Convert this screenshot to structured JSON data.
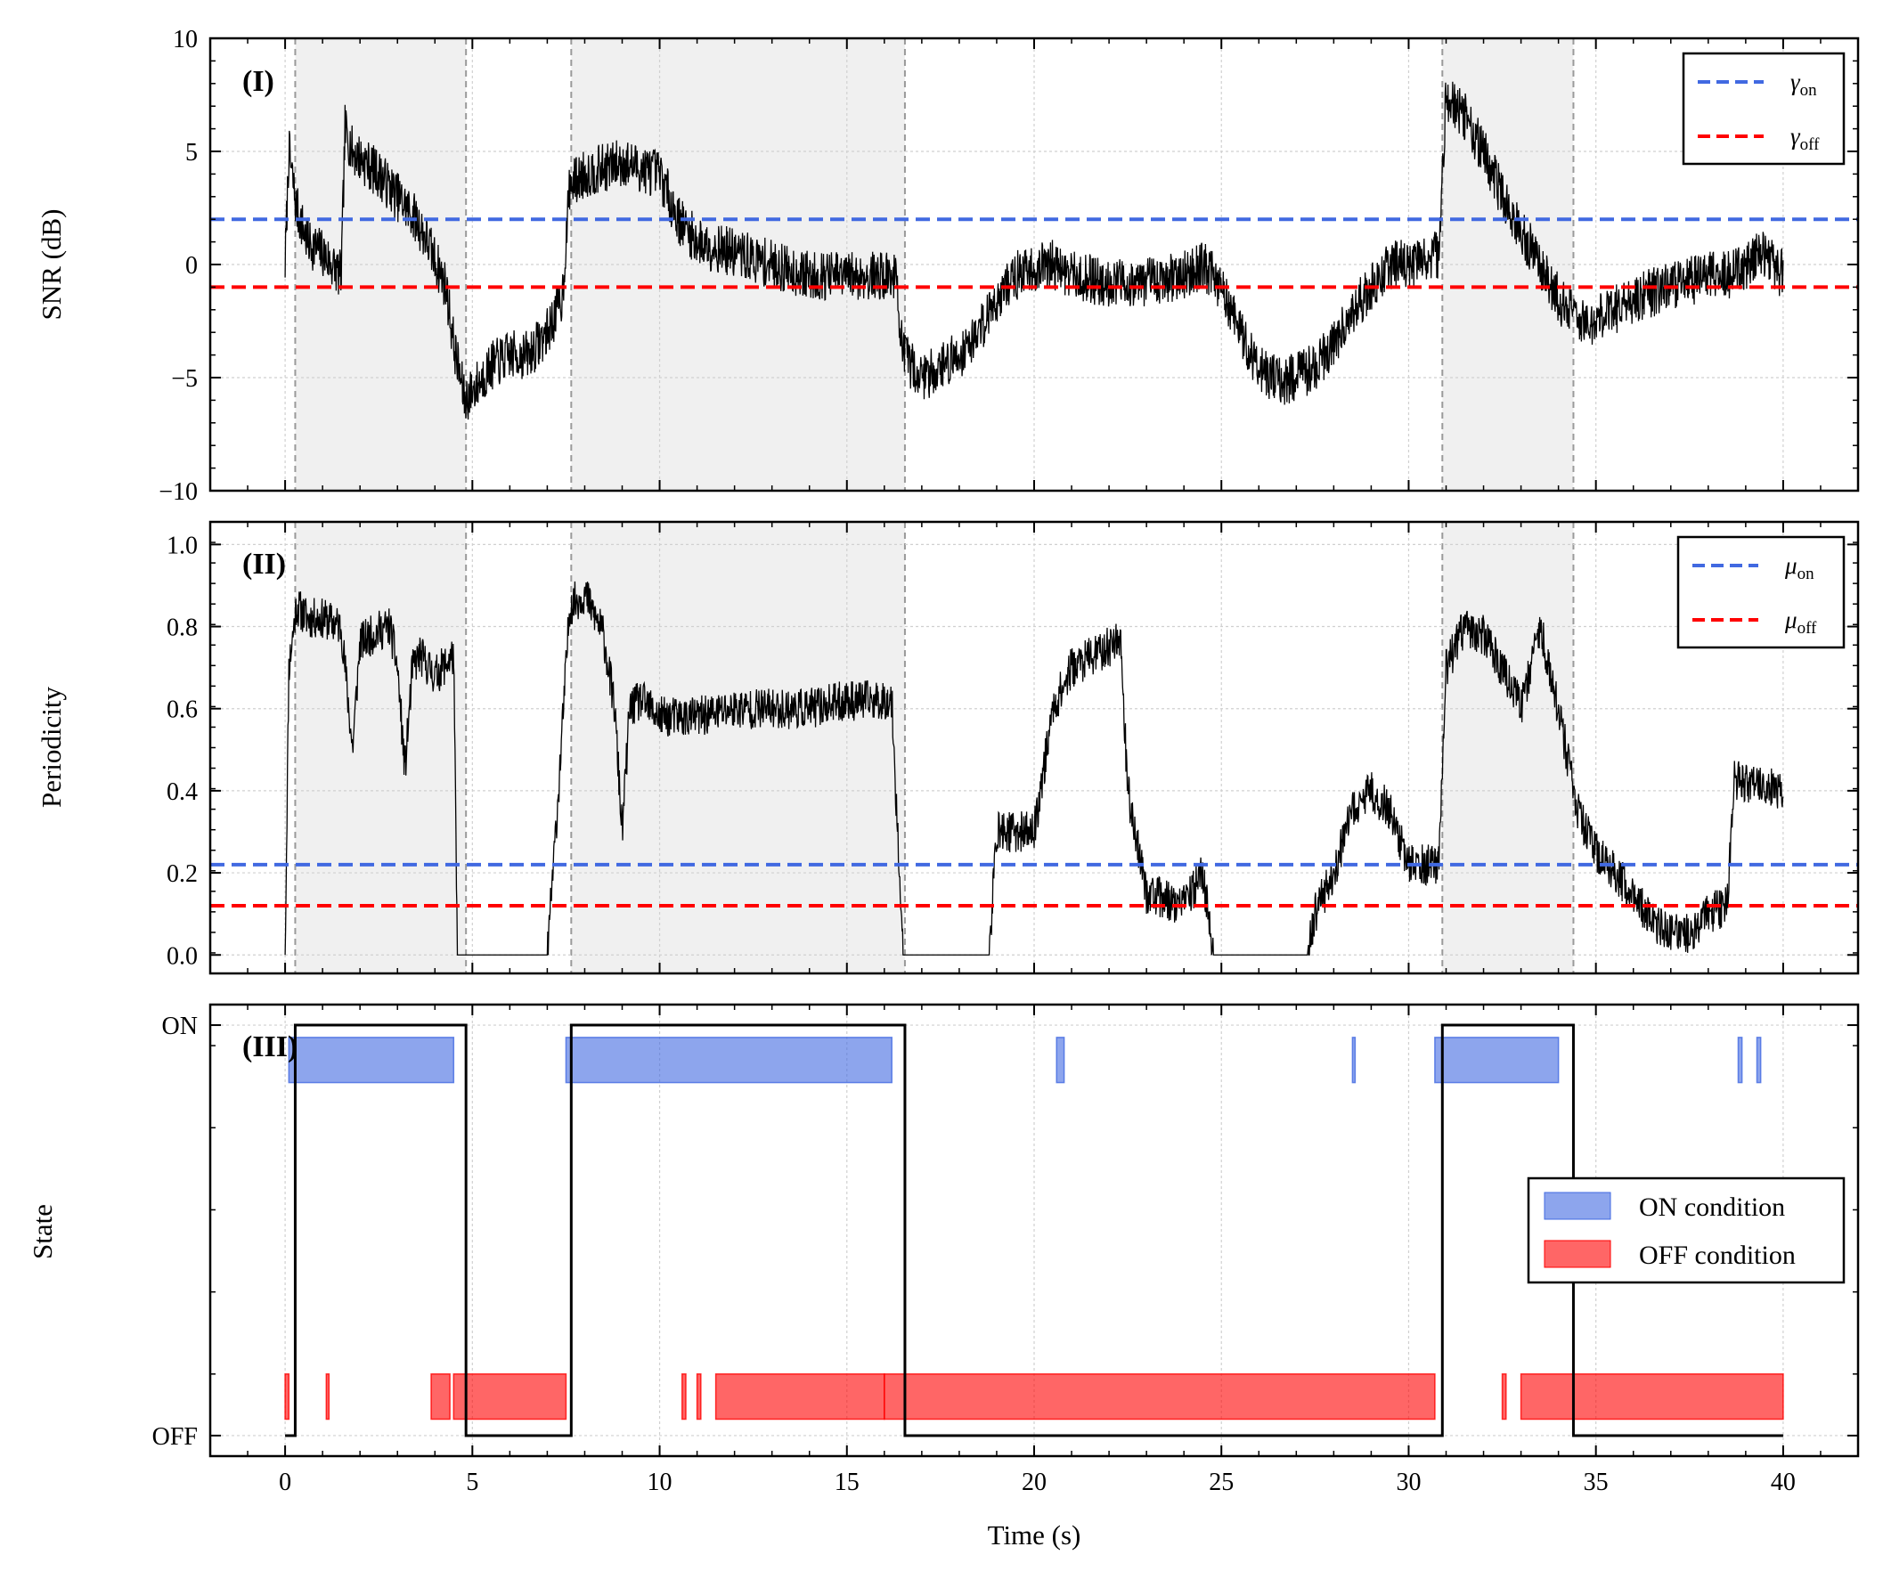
{
  "chart_data": [
    {
      "id": "panel1",
      "type": "line",
      "panel_label": "(I)",
      "xlabel": "",
      "ylabel": "SNR (dB)",
      "xlim": [
        -2.0,
        42.0
      ],
      "ylim": [
        -10,
        10
      ],
      "yticks": [
        -10,
        -5,
        0,
        5,
        10
      ],
      "ytick_labels": [
        "−10",
        "−5",
        "0",
        "5",
        "10"
      ],
      "grid": true,
      "legend": "top-right",
      "thresholds": [
        {
          "name": "γon",
          "symbol": "γ",
          "sub": "on",
          "value": 2.0,
          "color": "#4169E1"
        },
        {
          "name": "γoff",
          "symbol": "γ",
          "sub": "off",
          "value": -1.0,
          "color": "#FF0000"
        }
      ],
      "series": [
        {
          "name": "SNR",
          "color": "#000000",
          "keypoints": [
            [
              0.0,
              0.0
            ],
            [
              0.1,
              5.0
            ],
            [
              0.3,
              2.5
            ],
            [
              0.6,
              1.0
            ],
            [
              1.0,
              0.5
            ],
            [
              1.5,
              -0.5
            ],
            [
              1.6,
              6.0
            ],
            [
              1.8,
              5.0
            ],
            [
              2.5,
              4.0
            ],
            [
              3.0,
              3.0
            ],
            [
              3.5,
              2.0
            ],
            [
              3.8,
              1.0
            ],
            [
              4.3,
              -1.0
            ],
            [
              4.5,
              -3.5
            ],
            [
              4.8,
              -6.0
            ],
            [
              5.5,
              -4.5
            ],
            [
              6.0,
              -4.0
            ],
            [
              6.5,
              -4.0
            ],
            [
              7.0,
              -3.0
            ],
            [
              7.4,
              -1.5
            ],
            [
              7.6,
              3.5
            ],
            [
              8.0,
              4.0
            ],
            [
              9.0,
              4.5
            ],
            [
              10.0,
              4.0
            ],
            [
              10.5,
              2.0
            ],
            [
              11.0,
              1.0
            ],
            [
              12.0,
              0.5
            ],
            [
              13.0,
              0.0
            ],
            [
              14.0,
              -0.5
            ],
            [
              15.0,
              -0.5
            ],
            [
              16.0,
              -0.5
            ],
            [
              16.3,
              -0.5
            ],
            [
              16.5,
              -4.0
            ],
            [
              17.0,
              -5.0
            ],
            [
              17.5,
              -4.5
            ],
            [
              18.0,
              -4.0
            ],
            [
              18.5,
              -3.0
            ],
            [
              19.0,
              -1.5
            ],
            [
              19.5,
              -0.5
            ],
            [
              20.0,
              -0.2
            ],
            [
              20.5,
              0.0
            ],
            [
              21.0,
              -0.5
            ],
            [
              22.0,
              -0.8
            ],
            [
              23.0,
              -0.8
            ],
            [
              24.0,
              -0.5
            ],
            [
              24.5,
              0.0
            ],
            [
              25.0,
              -1.0
            ],
            [
              25.5,
              -3.0
            ],
            [
              26.0,
              -4.5
            ],
            [
              26.5,
              -5.2
            ],
            [
              27.0,
              -5.0
            ],
            [
              27.5,
              -4.5
            ],
            [
              28.0,
              -3.5
            ],
            [
              28.5,
              -2.0
            ],
            [
              29.0,
              -1.0
            ],
            [
              29.5,
              0.0
            ],
            [
              30.0,
              0.0
            ],
            [
              30.5,
              0.2
            ],
            [
              30.8,
              0.5
            ],
            [
              31.0,
              7.5
            ],
            [
              31.5,
              6.5
            ],
            [
              32.0,
              5.0
            ],
            [
              32.5,
              3.0
            ],
            [
              33.0,
              1.5
            ],
            [
              33.5,
              0.0
            ],
            [
              34.0,
              -1.5
            ],
            [
              34.5,
              -2.5
            ],
            [
              35.0,
              -2.5
            ],
            [
              35.5,
              -2.0
            ],
            [
              36.0,
              -1.5
            ],
            [
              37.0,
              -1.0
            ],
            [
              38.0,
              -0.5
            ],
            [
              38.5,
              -0.5
            ],
            [
              39.0,
              0.0
            ],
            [
              39.5,
              0.5
            ],
            [
              40.0,
              -0.5
            ]
          ]
        }
      ],
      "on_intervals": [
        [
          0.27,
          4.83
        ],
        [
          7.64,
          16.55
        ],
        [
          30.9,
          34.4
        ]
      ]
    },
    {
      "id": "panel2",
      "type": "line",
      "panel_label": "(II)",
      "xlabel": "",
      "ylabel": "Periodicity",
      "xlim": [
        -2.0,
        42.0
      ],
      "ylim": [
        -0.045,
        1.055
      ],
      "yticks": [
        0.0,
        0.2,
        0.4,
        0.6,
        0.8,
        1.0
      ],
      "ytick_labels": [
        "0.0",
        "0.2",
        "0.4",
        "0.6",
        "0.8",
        "1.0"
      ],
      "grid": true,
      "legend": "top-right",
      "thresholds": [
        {
          "name": "μon",
          "symbol": "μ",
          "sub": "on",
          "value": 0.22,
          "color": "#4169E1"
        },
        {
          "name": "μoff",
          "symbol": "μ",
          "sub": "off",
          "value": 0.12,
          "color": "#FF0000"
        }
      ],
      "series": [
        {
          "name": "Periodicity",
          "color": "#000000",
          "keypoints": [
            [
              0.0,
              0.0
            ],
            [
              0.1,
              0.7
            ],
            [
              0.3,
              0.85
            ],
            [
              0.6,
              0.82
            ],
            [
              1.0,
              0.82
            ],
            [
              1.5,
              0.8
            ],
            [
              1.6,
              0.7
            ],
            [
              1.8,
              0.5
            ],
            [
              2.0,
              0.76
            ],
            [
              2.5,
              0.79
            ],
            [
              2.8,
              0.8
            ],
            [
              3.0,
              0.7
            ],
            [
              3.2,
              0.45
            ],
            [
              3.4,
              0.7
            ],
            [
              3.6,
              0.73
            ],
            [
              4.0,
              0.68
            ],
            [
              4.5,
              0.73
            ],
            [
              4.6,
              0.0
            ],
            [
              7.0,
              0.0
            ],
            [
              7.3,
              0.4
            ],
            [
              7.6,
              0.85
            ],
            [
              8.0,
              0.88
            ],
            [
              8.5,
              0.78
            ],
            [
              8.8,
              0.6
            ],
            [
              9.0,
              0.3
            ],
            [
              9.2,
              0.6
            ],
            [
              9.5,
              0.62
            ],
            [
              10.0,
              0.58
            ],
            [
              11.0,
              0.58
            ],
            [
              12.0,
              0.6
            ],
            [
              13.0,
              0.6
            ],
            [
              14.0,
              0.6
            ],
            [
              15.0,
              0.62
            ],
            [
              16.2,
              0.62
            ],
            [
              16.5,
              0.0
            ],
            [
              18.8,
              0.0
            ],
            [
              19.0,
              0.3
            ],
            [
              20.0,
              0.3
            ],
            [
              20.5,
              0.6
            ],
            [
              21.0,
              0.7
            ],
            [
              22.0,
              0.75
            ],
            [
              22.3,
              0.78
            ],
            [
              22.5,
              0.4
            ],
            [
              23.0,
              0.15
            ],
            [
              24.0,
              0.12
            ],
            [
              24.5,
              0.2
            ],
            [
              24.8,
              0.0
            ],
            [
              27.3,
              0.0
            ],
            [
              27.5,
              0.1
            ],
            [
              28.0,
              0.2
            ],
            [
              28.5,
              0.35
            ],
            [
              29.0,
              0.4
            ],
            [
              29.5,
              0.35
            ],
            [
              30.0,
              0.22
            ],
            [
              30.8,
              0.22
            ],
            [
              31.0,
              0.7
            ],
            [
              31.5,
              0.8
            ],
            [
              32.0,
              0.78
            ],
            [
              32.5,
              0.7
            ],
            [
              33.0,
              0.6
            ],
            [
              33.5,
              0.8
            ],
            [
              34.0,
              0.6
            ],
            [
              34.5,
              0.35
            ],
            [
              35.0,
              0.25
            ],
            [
              35.5,
              0.2
            ],
            [
              36.0,
              0.15
            ],
            [
              36.5,
              0.08
            ],
            [
              37.0,
              0.05
            ],
            [
              37.5,
              0.05
            ],
            [
              38.0,
              0.1
            ],
            [
              38.5,
              0.12
            ],
            [
              38.7,
              0.43
            ],
            [
              39.0,
              0.42
            ],
            [
              40.0,
              0.4
            ]
          ]
        }
      ],
      "on_intervals": [
        [
          0.27,
          4.83
        ],
        [
          7.64,
          16.55
        ],
        [
          30.9,
          34.4
        ]
      ]
    },
    {
      "id": "panel3",
      "type": "step",
      "panel_label": "(III)",
      "xlabel": "Time (s)",
      "ylabel": "State",
      "xlim": [
        -2.0,
        42.0
      ],
      "ylim": [
        -0.05,
        1.05
      ],
      "yticks": [
        0,
        1
      ],
      "ytick_labels": [
        "OFF",
        "ON"
      ],
      "xticks": [
        0,
        5,
        10,
        15,
        20,
        25,
        30,
        35,
        40
      ],
      "xtick_labels": [
        "0",
        "5",
        "10",
        "15",
        "20",
        "25",
        "30",
        "35",
        "40"
      ],
      "grid": true,
      "legend": "center-right",
      "legend_entries": [
        {
          "label": "ON condition",
          "color": "#4169E1"
        },
        {
          "label": "OFF condition",
          "color": "#FF0000"
        }
      ],
      "state": [
        [
          0.0,
          0
        ],
        [
          0.27,
          0
        ],
        [
          0.27,
          1
        ],
        [
          4.83,
          1
        ],
        [
          4.83,
          0
        ],
        [
          7.64,
          0
        ],
        [
          7.64,
          1
        ],
        [
          16.55,
          1
        ],
        [
          16.55,
          0
        ],
        [
          30.9,
          0
        ],
        [
          30.9,
          1
        ],
        [
          34.4,
          1
        ],
        [
          34.4,
          0
        ],
        [
          40.0,
          0
        ]
      ],
      "on_condition_spans": [
        [
          0.1,
          4.5
        ],
        [
          7.5,
          16.2
        ],
        [
          20.6,
          20.8
        ],
        [
          28.5,
          28.55
        ],
        [
          30.7,
          34.0
        ],
        [
          38.8,
          38.9
        ],
        [
          39.3,
          39.4
        ]
      ],
      "off_condition_spans": [
        [
          0.0,
          0.1
        ],
        [
          1.1,
          1.15
        ],
        [
          3.9,
          4.4
        ],
        [
          4.5,
          7.5
        ],
        [
          10.6,
          10.7
        ],
        [
          11.0,
          11.1
        ],
        [
          11.5,
          16.0
        ],
        [
          16.0,
          30.7
        ],
        [
          32.5,
          32.6
        ],
        [
          33.0,
          40.0
        ]
      ]
    }
  ]
}
